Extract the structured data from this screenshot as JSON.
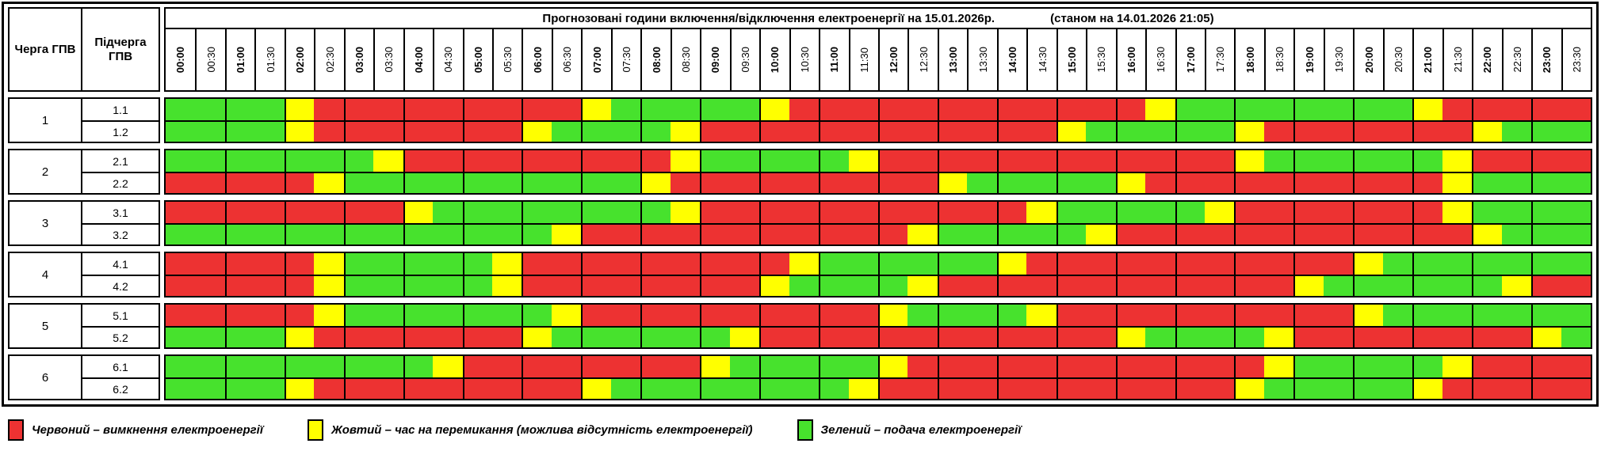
{
  "title": {
    "main": "Прогнозовані години включення/відключення електроенергії на 15.01.2026р.",
    "status": "(станом на 14.01.2026 21:05)"
  },
  "columns": {
    "queue": "Черга ГПВ",
    "subqueue": "Підчерга ГПВ"
  },
  "time_slots": [
    "00:00",
    "00:30",
    "01:00",
    "01:30",
    "02:00",
    "02:30",
    "03:00",
    "03:30",
    "04:00",
    "04:30",
    "05:00",
    "05:30",
    "06:00",
    "06:30",
    "07:00",
    "07:30",
    "08:00",
    "08:30",
    "09:00",
    "09:30",
    "10:00",
    "10:30",
    "11:00",
    "11:30",
    "12:00",
    "12:30",
    "13:00",
    "13:30",
    "14:00",
    "14:30",
    "15:00",
    "15:30",
    "16:00",
    "16:30",
    "17:00",
    "17:30",
    "18:00",
    "18:30",
    "19:00",
    "19:30",
    "20:00",
    "20:30",
    "21:00",
    "21:30",
    "22:00",
    "22:30",
    "23:00",
    "23:30"
  ],
  "colors": {
    "red": "#ed3232",
    "yellow": "#ffff00",
    "green": "#47e22d"
  },
  "state_codes": {
    "G": "green",
    "Y": "yellow",
    "R": "red"
  },
  "queues": [
    {
      "number": "1",
      "rows": [
        {
          "label": "1.1",
          "slots": "GGGGYRRRRRRRRRYGGGGGYRRRRRRRRRRRRYGGGGGGGGYRRRRR"
        },
        {
          "label": "1.2",
          "slots": "GGGGYRRRRRRRYGGGGYRRRRRRRRRRRRYGGGGGYRRRRRRRYGGG"
        }
      ]
    },
    {
      "number": "2",
      "rows": [
        {
          "label": "2.1",
          "slots": "GGGGGGGYRRRRRRRRRYGGGGGYRRRRRRRRRRRRYGGGGGGYRRRR"
        },
        {
          "label": "2.2",
          "slots": "RRRRRYGGGGGGGGGGYRRRRRRRRRYGGGGGYRRRRRRRRRRYGGGG"
        }
      ]
    },
    {
      "number": "3",
      "rows": [
        {
          "label": "3.1",
          "slots": "RRRRRRRRYGGGGGGGGYRRRRRRRRRRRYGGGGGYRRRRRRRYGGGG"
        },
        {
          "label": "3.2",
          "slots": "GGGGGGGGGGGGGYRRRRRRRRRRRYGGGGGYRRRRRRRRRRRRYGGG"
        }
      ]
    },
    {
      "number": "4",
      "rows": [
        {
          "label": "4.1",
          "slots": "RRRRRYGGGGGYRRRRRRRRRYGGGGGGYRRRRRRRRRRRYGGGGGGG"
        },
        {
          "label": "4.2",
          "slots": "RRRRRYGGGGGYRRRRRRRRYGGGGYRRRRRRRRRRRRYGGGGGGYRR"
        }
      ]
    },
    {
      "number": "5",
      "rows": [
        {
          "label": "5.1",
          "slots": "RRRRRYGGGGGGGYRRRRRRRRRRYGGGGYRRRRRRRRRRYGGGGGGG"
        },
        {
          "label": "5.2",
          "slots": "GGGGYRRRRRRRYGGGGGGYRRRRRRRRRRRRYGGGGYRRRRRRRRYG"
        }
      ]
    },
    {
      "number": "6",
      "rows": [
        {
          "label": "6.1",
          "slots": "GGGGGGGGGYRRRRRRRRYGGGGGYRRRRRRRRRRRRYGGGGGYRRRR"
        },
        {
          "label": "6.2",
          "slots": "GGGGYRRRRRRRRRYGGGGGGGGYRRRRRRRRRRRRYGGGGGYRRRRR"
        }
      ]
    }
  ],
  "legend": [
    {
      "color_key": "red",
      "text": "Червоний – вимкнення електроенергії"
    },
    {
      "color_key": "yellow",
      "text": "Жовтий – час на перемикання (можлива відсутність електроенергії)"
    },
    {
      "color_key": "green",
      "text": "Зелений – подача електроенергії"
    }
  ]
}
